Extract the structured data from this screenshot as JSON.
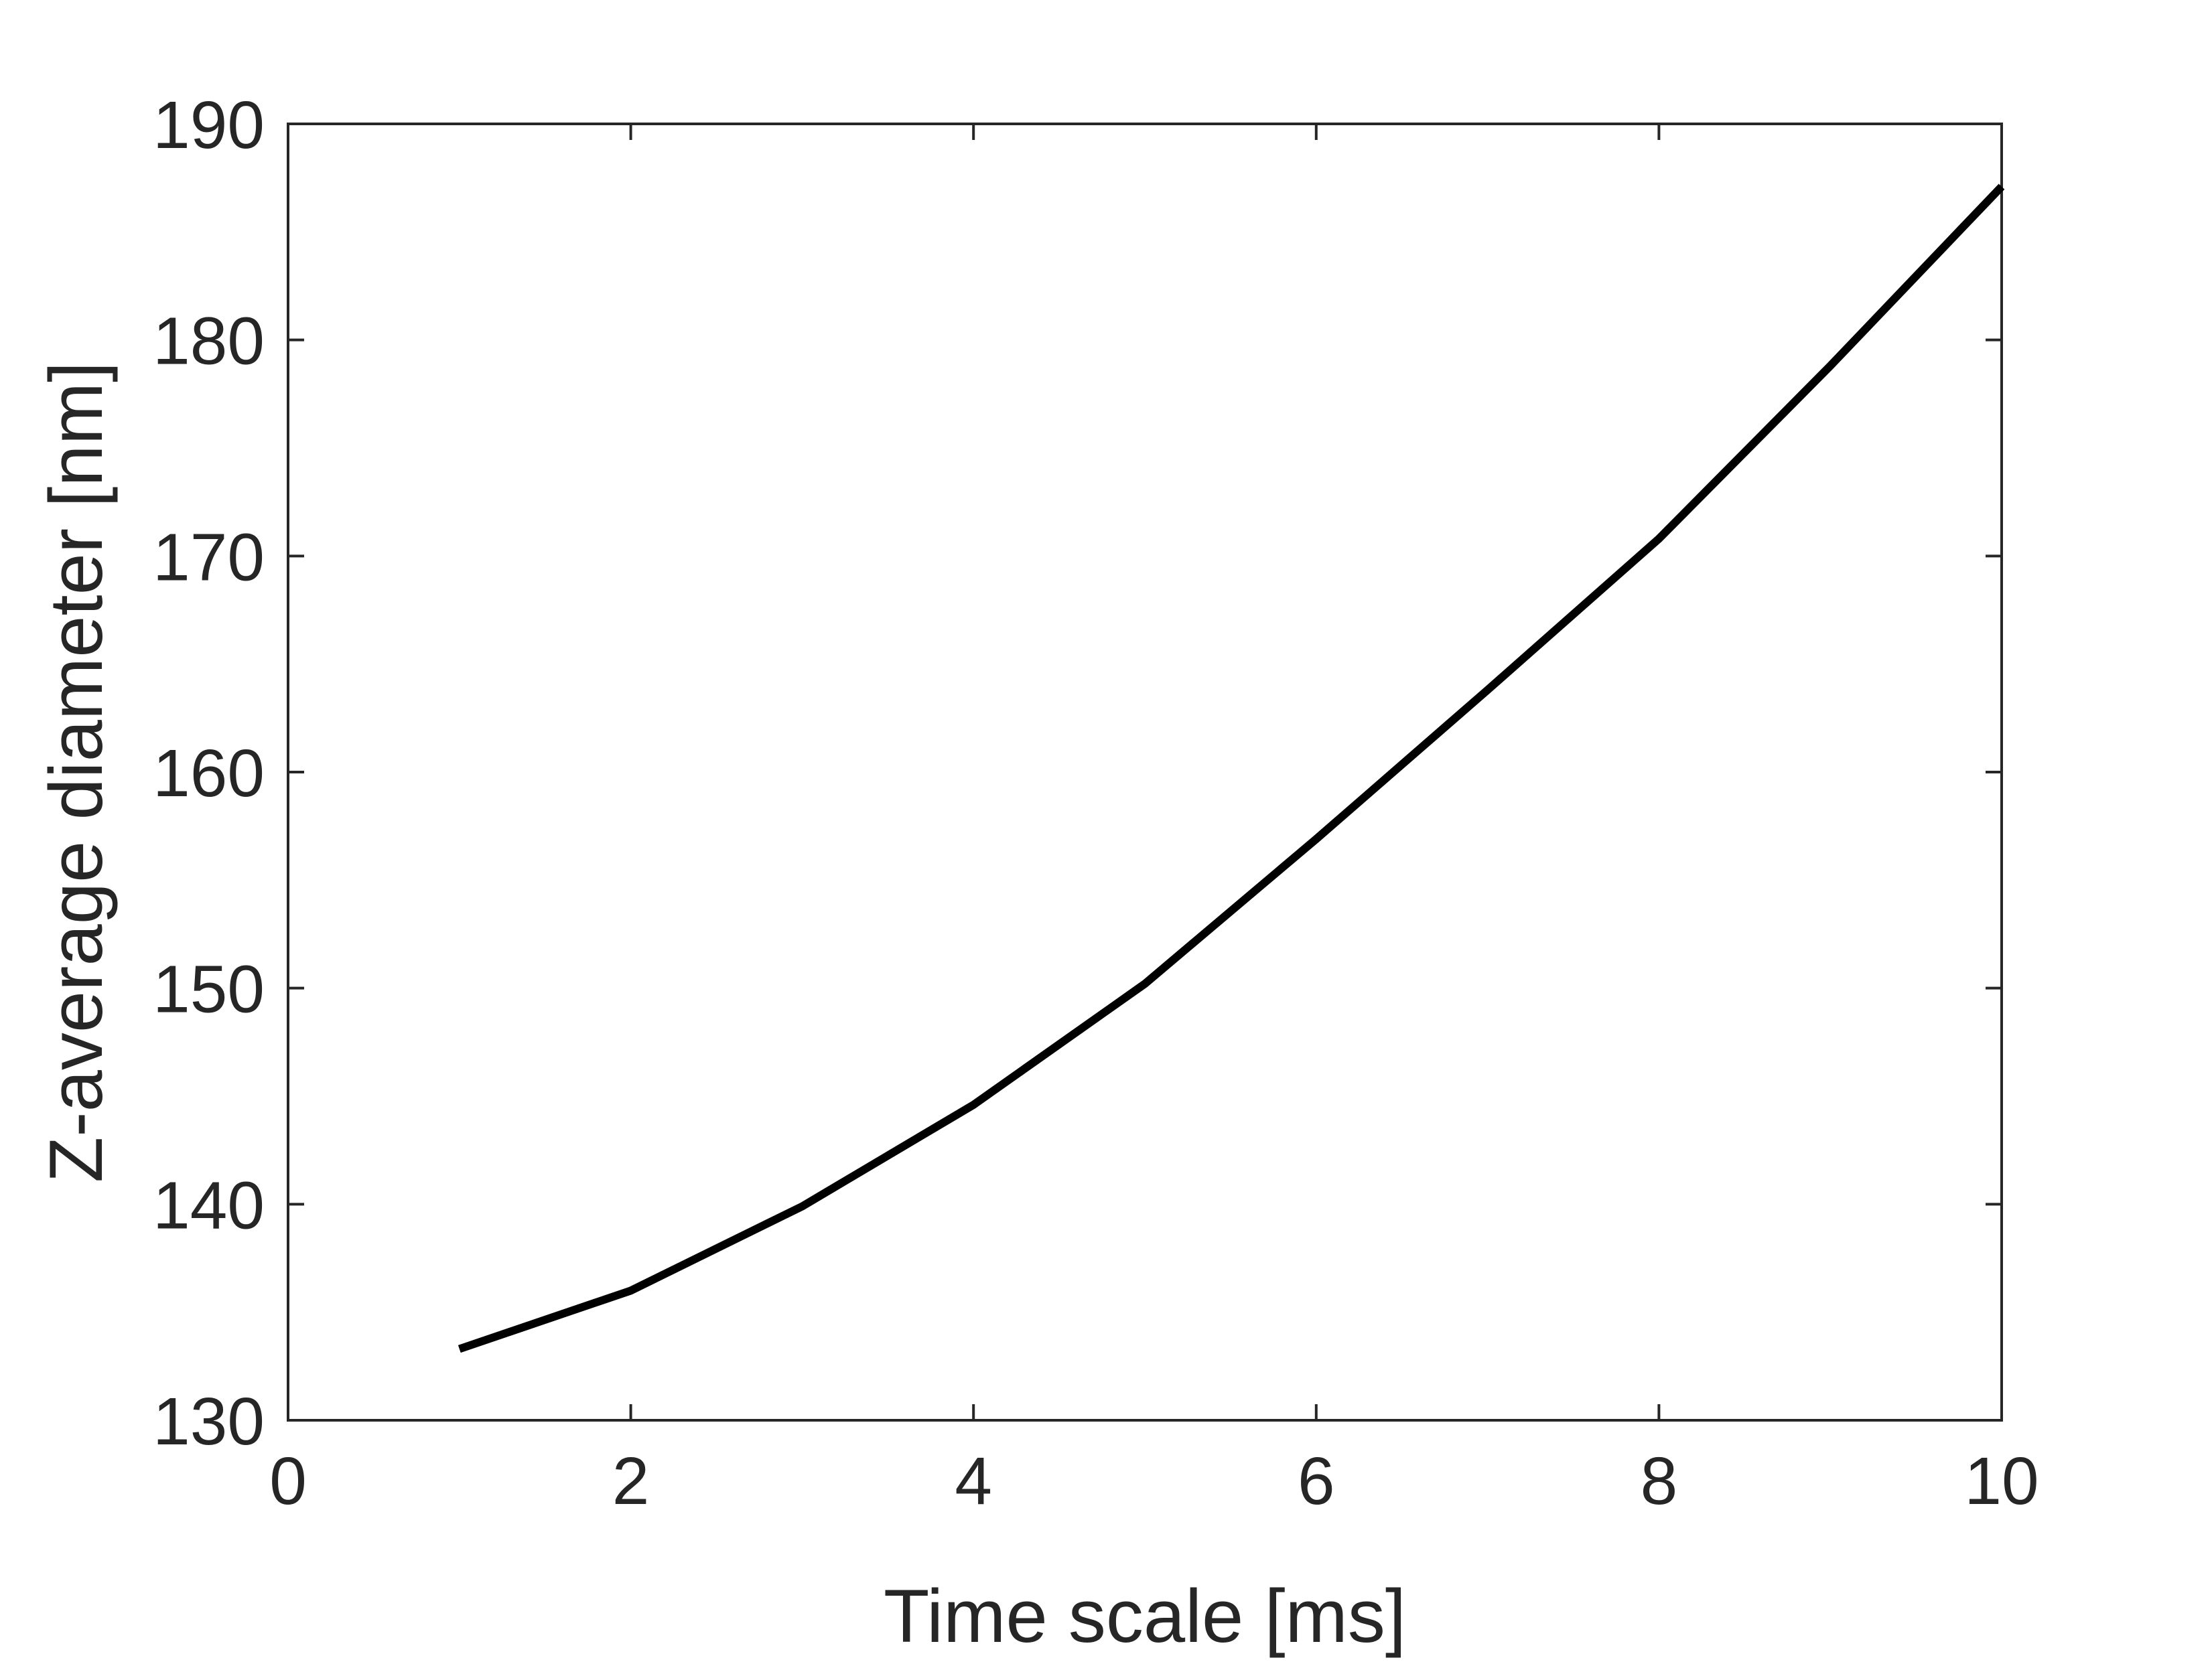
{
  "chart_data": {
    "type": "line",
    "title": "",
    "xlabel": "Time scale [ms]",
    "ylabel": "Z-average diameter [nm]",
    "xlim": [
      0,
      10
    ],
    "ylim": [
      130,
      190
    ],
    "xticks": [
      0,
      2,
      4,
      6,
      8,
      10
    ],
    "yticks": [
      130,
      140,
      150,
      160,
      170,
      180,
      190
    ],
    "xtick_labels": [
      "0",
      "2",
      "4",
      "6",
      "8",
      "10"
    ],
    "ytick_labels": [
      "130",
      "140",
      "150",
      "160",
      "170",
      "180",
      "190"
    ],
    "grid": false,
    "legend": "none",
    "series": [
      {
        "color": "#000000",
        "x": [
          1,
          2,
          3,
          4,
          5,
          6,
          7,
          8,
          9,
          10
        ],
        "y": [
          133.3,
          136.0,
          139.9,
          144.6,
          150.2,
          156.9,
          163.8,
          170.8,
          178.8,
          187.1
        ]
      }
    ]
  }
}
